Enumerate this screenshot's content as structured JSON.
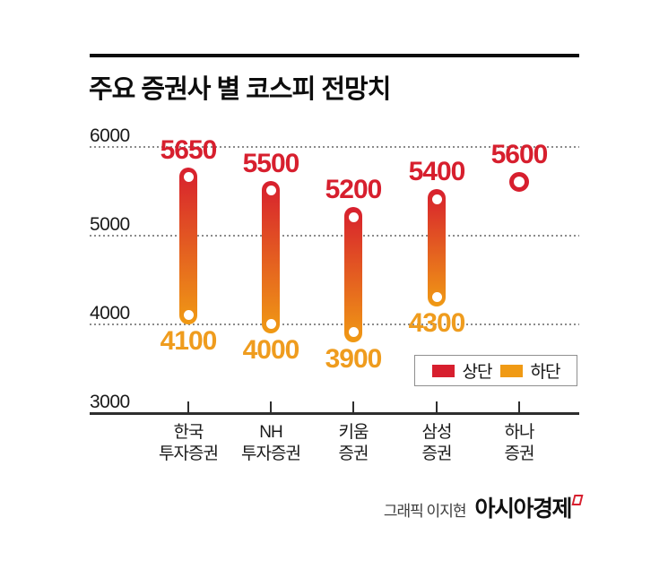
{
  "header": {
    "title": "주요 증권사 별 코스피 전망치"
  },
  "footer": {
    "credit": "그래픽 이지현",
    "brand": "아시아경제"
  },
  "colors": {
    "upper_red": "#d71f2e",
    "lower_orange": "#f09a14",
    "label_orange": "#ef9c1e",
    "axis": "#2e2e2e",
    "grid": "#8b8b8b"
  },
  "chart_data": {
    "type": "bar",
    "subtype": "range-capsule",
    "title": "주요 증권사 별 코스피 전망치",
    "categories": [
      [
        "한국",
        "투자증권"
      ],
      [
        "NH",
        "투자증권"
      ],
      [
        "키움",
        "증권"
      ],
      [
        "삼성",
        "증권"
      ],
      [
        "하나",
        "증권"
      ]
    ],
    "series": [
      {
        "name": "상단",
        "color": "#d71f2e",
        "values": [
          5650,
          5500,
          5200,
          5400,
          5600
        ]
      },
      {
        "name": "하단",
        "color": "#f09a14",
        "values": [
          4100,
          4000,
          3900,
          4300,
          null
        ]
      }
    ],
    "ylim": [
      3000,
      6000
    ],
    "yticks": [
      3000,
      4000,
      5000,
      6000
    ],
    "grid": "dotted-horizontal",
    "legend_position": "bottom-right"
  }
}
